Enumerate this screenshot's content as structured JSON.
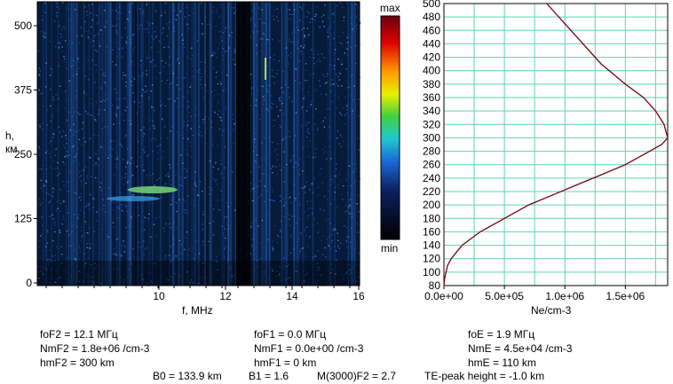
{
  "ionogram": {
    "y_axis_label_h": "h,",
    "y_axis_label_unit": "км",
    "y_ticks": [
      "0",
      "125",
      "250",
      "375",
      "500"
    ],
    "x_ticks": [
      "10",
      "12",
      "14",
      "16"
    ],
    "x_axis_label": "f, MHz"
  },
  "colorbar": {
    "max_label": "max",
    "min_label": "min"
  },
  "chart_data": {
    "type": "line",
    "title": "",
    "xlabel": "Ne/cm-3",
    "ylabel": "",
    "xlim": [
      0,
      1850000
    ],
    "ylim": [
      80,
      500
    ],
    "x_tick_labels": [
      "0.0e+00",
      "5.0e+05",
      "1.0e+06",
      "1.5e+06"
    ],
    "y_tick_labels": [
      "80",
      "100",
      "120",
      "140",
      "160",
      "180",
      "200",
      "220",
      "240",
      "260",
      "280",
      "300",
      "320",
      "340",
      "360",
      "380",
      "400",
      "420",
      "440",
      "460",
      "480",
      "500"
    ],
    "grid": true,
    "series": [
      {
        "x": [
          0,
          5000,
          30000,
          60000,
          150000,
          300000,
          500000,
          700000,
          900000,
          1100000,
          1300000,
          1500000,
          1700000,
          1800000,
          1850000,
          1820000,
          1750000,
          1650000,
          1500000,
          1300000,
          1150000,
          1000000,
          850000
        ],
        "y": [
          80,
          90,
          110,
          120,
          140,
          160,
          180,
          200,
          215,
          230,
          245,
          260,
          280,
          290,
          300,
          320,
          340,
          360,
          380,
          410,
          440,
          470,
          500
        ]
      }
    ]
  },
  "params": {
    "foF2": "foF2 = 12.1 МГц",
    "NmF2": "NmF2 = 1.8e+06 /cm-3",
    "hmF2": "hmF2 = 300 km",
    "foF1": "foF1 = 0.0 МГц",
    "NmF1": "NmF1 = 0.0e+00 /cm-3",
    "hmF1": "hmF1 = 0 km",
    "foE": "foE = 1.9 МГц",
    "NmE": "NmE = 4.5e+04 /cm-3",
    "hmE": "hmE = 110 km",
    "B0": "B0 = 133.9 km",
    "B1": "B1 = 1.6",
    "M3000F2": "M(3000)F2 = 2.7",
    "TEpeak": "TE-peak height = -1.0 km"
  },
  "colors": {
    "profile_line": "#7a0010",
    "grid": "#5fd4b2",
    "ionogram_bg": "#061a3a"
  }
}
